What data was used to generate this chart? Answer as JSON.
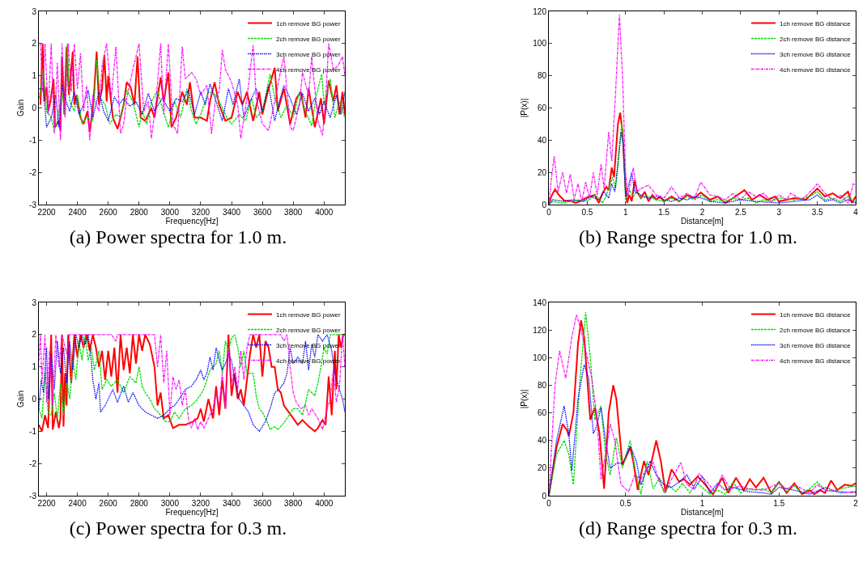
{
  "chart_data": [
    {
      "type": "line",
      "title": "(a) Power spectra for 1.0 m.",
      "xlabel": "Frequency[Hz]",
      "ylabel": "Gain",
      "xlim": [
        2150,
        4135
      ],
      "xticks": [
        2200,
        2400,
        2600,
        2800,
        3000,
        3200,
        3400,
        3600,
        3800,
        4000
      ],
      "ylim": [
        -3,
        3
      ],
      "yticks": [
        -3,
        -2,
        -1,
        0,
        1,
        2,
        3
      ],
      "grid": false,
      "legend": "top right",
      "series": [
        {
          "name": "1ch remove BG power",
          "color": "#ff0000",
          "line_style": "solid",
          "x": [
            2160,
            2175,
            2185,
            2200,
            2210,
            2225,
            2245,
            2255,
            2280,
            2290,
            2300,
            2315,
            2330,
            2345,
            2370,
            2380,
            2395,
            2420,
            2440,
            2465,
            2480,
            2500,
            2510,
            2525,
            2540,
            2560,
            2575,
            2590,
            2600,
            2630,
            2660,
            2680,
            2700,
            2720,
            2745,
            2770,
            2790,
            2810,
            2840,
            2880,
            2900,
            2940,
            2960,
            2990,
            3010,
            3040,
            3080,
            3110,
            3130,
            3160,
            3200,
            3240,
            3260,
            3290,
            3320,
            3360,
            3400,
            3440,
            3470,
            3500,
            3540,
            3580,
            3600,
            3640,
            3680,
            3700,
            3740,
            3780,
            3820,
            3850,
            3880,
            3900,
            3940,
            3980,
            4000,
            4030,
            4060,
            4080,
            4100,
            4120,
            4135
          ],
          "values": [
            0.1,
            2,
            0.2,
            0.65,
            -0.1,
            0.2,
            0.9,
            -0.6,
            -0.4,
            -0.7,
            1.6,
            -0.2,
            1.9,
            0.4,
            1.75,
            0.1,
            0.4,
            -0.3,
            -0.5,
            -0.1,
            -0.75,
            0,
            0.6,
            1.75,
            0.1,
            0.6,
            1.65,
            0.2,
            1,
            -0.3,
            -0.65,
            -0.3,
            0.1,
            0.8,
            0.65,
            0.1,
            1.6,
            -0.3,
            -0.4,
            0,
            -0.3,
            0.95,
            0.2,
            1.1,
            -0.6,
            -0.3,
            0.5,
            0.1,
            0.8,
            -0.3,
            -0.3,
            -0.4,
            0.2,
            0.8,
            0.1,
            -0.4,
            -0.3,
            0.5,
            0.1,
            0.5,
            -0.4,
            0.5,
            -0.2,
            0.6,
            1.25,
            -0.1,
            0.6,
            -0.5,
            0.3,
            0.5,
            -0.3,
            0.6,
            -0.6,
            0.3,
            -0.5,
            0.85,
            0.2,
            0.7,
            -0.2,
            0.5,
            -0.2
          ]
        },
        {
          "name": "2ch remove BG power",
          "color": "#00dd00",
          "line_style": "dashed",
          "x": [
            2152,
            2180,
            2200,
            2230,
            2250,
            2270,
            2300,
            2320,
            2335,
            2350,
            2380,
            2400,
            2430,
            2460,
            2500,
            2525,
            2550,
            2580,
            2610,
            2650,
            2680,
            2720,
            2760,
            2800,
            2820,
            2850,
            2880,
            2920,
            2950,
            2990,
            3030,
            3070,
            3110,
            3140,
            3170,
            3200,
            3250,
            3300,
            3330,
            3370,
            3400,
            3450,
            3490,
            3530,
            3560,
            3600,
            3650,
            3680,
            3720,
            3760,
            3800,
            3840,
            3880,
            3920,
            3950,
            3985,
            4000,
            4040,
            4070,
            4100,
            4135
          ],
          "values": [
            0.3,
            1.2,
            -0.1,
            -0.3,
            -0.7,
            -0.4,
            0.5,
            -0.2,
            2,
            0.2,
            -0.1,
            0.4,
            -0.5,
            -0.3,
            -0.4,
            1.5,
            0.3,
            0.1,
            -0.5,
            -0.2,
            -0.3,
            0.55,
            0.2,
            -0.6,
            -0.1,
            -0.5,
            0.2,
            0.55,
            0,
            -0.6,
            0.2,
            -0.3,
            0.6,
            -0.1,
            -0.5,
            -0.2,
            0.5,
            0.4,
            0.1,
            -0.3,
            -0.5,
            -0.2,
            -0.4,
            0.3,
            -0.3,
            -0.1,
            1.05,
            0.3,
            -0.3,
            0.1,
            -0.3,
            0.5,
            -0.1,
            -0.55,
            0.4,
            1.05,
            0.1,
            0.9,
            -0.3,
            0.2,
            -0.3
          ]
        },
        {
          "name": "3ch remove BG power",
          "color": "#0000ff",
          "line_style": "dotted",
          "x": [
            2153,
            2180,
            2200,
            2230,
            2260,
            2280,
            2300,
            2320,
            2350,
            2380,
            2410,
            2440,
            2470,
            2500,
            2540,
            2570,
            2600,
            2640,
            2670,
            2700,
            2740,
            2780,
            2820,
            2860,
            2900,
            2950,
            3000,
            3040,
            3080,
            3120,
            3160,
            3200,
            3230,
            3260,
            3300,
            3340,
            3380,
            3410,
            3450,
            3480,
            3520,
            3560,
            3600,
            3640,
            3680,
            3710,
            3740,
            3780,
            3820,
            3860,
            3900,
            3940,
            3970,
            4000,
            4040,
            4080,
            4110,
            4135
          ],
          "values": [
            0.6,
            0.6,
            -0.6,
            -0.3,
            0.4,
            -0.6,
            0.7,
            0.3,
            -0.1,
            0.5,
            -0.2,
            0.1,
            0.55,
            -0.3,
            0.5,
            -0.1,
            -0.4,
            0.35,
            0.1,
            0.3,
            0.05,
            0.2,
            -0.2,
            0.45,
            -0.1,
            0.3,
            -0.1,
            0.3,
            0.2,
            0.55,
            -0.2,
            0.5,
            0.1,
            0.75,
            0.2,
            -0.4,
            0.6,
            0.1,
            0.9,
            -0.3,
            0.2,
            0.6,
            -0.1,
            0.7,
            -0.4,
            0.2,
            0.7,
            0.3,
            -0.2,
            0.45,
            -0.1,
            0.3,
            -0.2,
            0.2,
            -0.3,
            0.4,
            -0.2,
            0.5
          ]
        },
        {
          "name": "4ch remove BG power",
          "color": "#ff00ff",
          "line_style": "dashdot",
          "x": [
            2160,
            2175,
            2190,
            2210,
            2230,
            2250,
            2270,
            2290,
            2300,
            2320,
            2340,
            2360,
            2380,
            2400,
            2420,
            2440,
            2460,
            2480,
            2500,
            2540,
            2560,
            2590,
            2620,
            2650,
            2680,
            2700,
            2720,
            2760,
            2800,
            2830,
            2860,
            2880,
            2910,
            2940,
            2960,
            2990,
            3020,
            3050,
            3080,
            3100,
            3140,
            3170,
            3200,
            3240,
            3270,
            3300,
            3320,
            3340,
            3360,
            3400,
            3440,
            3460,
            3500,
            3540,
            3560,
            3600,
            3640,
            3680,
            3720,
            3740,
            3780,
            3800,
            3840,
            3860,
            3900,
            3920,
            3960,
            3990,
            4010,
            4030,
            4060,
            4090,
            4120,
            4135
          ],
          "values": [
            2,
            0.5,
            2,
            -0.2,
            2,
            -0.8,
            1.4,
            -1,
            2,
            -0.3,
            2,
            0.5,
            2,
            0.6,
            1.7,
            -0.1,
            0.7,
            -1,
            0.4,
            -0.1,
            1.3,
            2,
            0.3,
            1.9,
            -0.8,
            -0.5,
            0.3,
            1.2,
            2,
            -0.1,
            0.2,
            -0.95,
            0.2,
            2,
            -0.2,
            2,
            -0.5,
            -0.8,
            1.9,
            0.9,
            1.1,
            0.9,
            0.4,
            0.7,
            -0.8,
            0.4,
            0.5,
            1.8,
            1.2,
            0.8,
            0.1,
            -0.95,
            0.3,
            1.95,
            0.3,
            -0.5,
            -0.7,
            0.2,
            1.2,
            1.6,
            -0.6,
            -0.7,
            0.1,
            1.1,
            0.4,
            1.6,
            -0.4,
            -0.85,
            0.2,
            2,
            1.2,
            1.3,
            1.6,
            1.0
          ]
        }
      ]
    },
    {
      "type": "line",
      "title": "(b) Range spectra for 1.0 m.",
      "xlabel": "Distance[m]",
      "ylabel": "|P(x)|",
      "xlim": [
        0,
        4
      ],
      "xticks": [
        0,
        0.5,
        1,
        1.5,
        2,
        2.5,
        3,
        3.5,
        4
      ],
      "ylim": [
        0,
        120
      ],
      "yticks": [
        0,
        20,
        40,
        60,
        80,
        100,
        120
      ],
      "grid": false,
      "legend": "top right",
      "series": [
        {
          "name": "1ch remove BG distance",
          "color": "#ff0000",
          "line_style": "solid",
          "x": [
            0,
            0.03,
            0.08,
            0.13,
            0.2,
            0.3,
            0.35,
            0.4,
            0.5,
            0.6,
            0.65,
            0.7,
            0.75,
            0.78,
            0.82,
            0.85,
            0.9,
            0.93,
            0.96,
            1.0,
            1.02,
            1.05,
            1.08,
            1.12,
            1.15,
            1.2,
            1.25,
            1.3,
            1.35,
            1.4,
            1.45,
            1.5,
            1.6,
            1.7,
            1.8,
            1.9,
            1.98,
            2.1,
            2.2,
            2.3,
            2.4,
            2.55,
            2.65,
            2.75,
            2.85,
            2.95,
            3.0,
            3.2,
            3.35,
            3.5,
            3.6,
            3.7,
            3.8,
            3.9,
            3.95,
            4.0
          ],
          "values": [
            0,
            5,
            9.5,
            6,
            2.5,
            2,
            1,
            2,
            4.5,
            6,
            1,
            7,
            11,
            9,
            23,
            17,
            50,
            57,
            45,
            10,
            1,
            6,
            2,
            15,
            8,
            4,
            8,
            2,
            6,
            3,
            5,
            2,
            5,
            2,
            6,
            4,
            7.5,
            3,
            5,
            1,
            4,
            9,
            3,
            6,
            3,
            5,
            2,
            4,
            3,
            10,
            5,
            7,
            4,
            8,
            1,
            5
          ]
        },
        {
          "name": "2ch remove BG distance",
          "color": "#00dd00",
          "line_style": "dashed",
          "x": [
            0,
            0.05,
            0.15,
            0.3,
            0.4,
            0.5,
            0.6,
            0.65,
            0.7,
            0.75,
            0.83,
            0.87,
            0.91,
            0.95,
            0.98,
            1.0,
            1.05,
            1.1,
            1.15,
            1.2,
            1.3,
            1.4,
            1.5,
            1.6,
            1.7,
            1.8,
            1.9,
            2.0,
            2.1,
            2.2,
            2.3,
            2.4,
            2.5,
            2.6,
            2.7,
            2.8,
            2.9,
            3.0,
            3.2,
            3.4,
            3.5,
            3.6,
            3.7,
            3.8,
            3.9,
            4.0
          ],
          "values": [
            0,
            2,
            1,
            2,
            3,
            2,
            6,
            4,
            1,
            6,
            17,
            10,
            30,
            50,
            30,
            3,
            9,
            5,
            8,
            4,
            5,
            3,
            2,
            4,
            2,
            5,
            3,
            6,
            2,
            3,
            2,
            4,
            3,
            4,
            1,
            3,
            2,
            4,
            3,
            5,
            8,
            3,
            4,
            2,
            5,
            2
          ]
        },
        {
          "name": "3ch remove BG distance",
          "color": "#0000ff",
          "line_style": "dotted",
          "x": [
            0,
            0.05,
            0.2,
            0.3,
            0.45,
            0.55,
            0.65,
            0.72,
            0.78,
            0.82,
            0.86,
            0.9,
            0.94,
            0.97,
            1.0,
            1.03,
            1.08,
            1.12,
            1.2,
            1.3,
            1.4,
            1.5,
            1.6,
            1.7,
            1.8,
            1.9,
            2.0,
            2.1,
            2.3,
            2.5,
            2.7,
            3.0,
            3.2,
            3.4,
            3.5,
            3.6,
            3.7,
            3.8,
            3.9,
            4.0
          ],
          "values": [
            0,
            3,
            2,
            3,
            2,
            5,
            3,
            8,
            4,
            13,
            8,
            25,
            45,
            38,
            5,
            10,
            20,
            8,
            6,
            4,
            5,
            3,
            2,
            4,
            3,
            5,
            4,
            2,
            1,
            3,
            2,
            1,
            2,
            3,
            6,
            2,
            3,
            1,
            3,
            1
          ]
        },
        {
          "name": "4ch remove BG distance",
          "color": "#ff00ff",
          "line_style": "dashdot",
          "x": [
            0,
            0.03,
            0.07,
            0.12,
            0.18,
            0.23,
            0.28,
            0.33,
            0.38,
            0.43,
            0.48,
            0.53,
            0.58,
            0.63,
            0.68,
            0.72,
            0.78,
            0.82,
            0.87,
            0.92,
            0.96,
            1.0,
            1.03,
            1.1,
            1.15,
            1.2,
            1.3,
            1.4,
            1.5,
            1.6,
            1.7,
            1.8,
            1.9,
            1.98,
            2.1,
            2.2,
            2.3,
            2.4,
            2.5,
            2.6,
            2.7,
            2.8,
            2.9,
            3.0,
            3.1,
            3.15,
            3.3,
            3.45,
            3.5,
            3.6,
            3.7,
            3.8,
            3.9,
            3.97,
            4.0
          ],
          "values": [
            0,
            15,
            30,
            8,
            20,
            7,
            19,
            3,
            13,
            2,
            14,
            4,
            20,
            6,
            25,
            10,
            45,
            27,
            70,
            118,
            80,
            20,
            5,
            23,
            8,
            10,
            12,
            6,
            4,
            11,
            4,
            7,
            4,
            14,
            6,
            5,
            3,
            7,
            3,
            8,
            5,
            7,
            2,
            6,
            3,
            7,
            3,
            10,
            13,
            7,
            3,
            6,
            1,
            13,
            12
          ]
        }
      ]
    },
    {
      "type": "line",
      "title": "(c) Power spectra for 0.3 m.",
      "xlabel": "Frequency[Hz]",
      "ylabel": "Gain",
      "xlim": [
        2150,
        4135
      ],
      "xticks": [
        2200,
        2400,
        2600,
        2800,
        3000,
        3200,
        3400,
        3600,
        3800,
        4000
      ],
      "ylim": [
        -3,
        3
      ],
      "yticks": [
        -3,
        -2,
        -1,
        0,
        1,
        2,
        3
      ],
      "grid": false,
      "legend": "top right",
      "series": [
        {
          "name": "1ch remove BG power",
          "color": "#ff0000",
          "line_style": "solid",
          "x": [
            2150,
            2170,
            2190,
            2210,
            2230,
            2240,
            2260,
            2280,
            2290,
            2300,
            2310,
            2320,
            2330,
            2340,
            2360,
            2380,
            2400,
            2420,
            2440,
            2460,
            2480,
            2500,
            2520,
            2540,
            2560,
            2580,
            2600,
            2620,
            2640,
            2660,
            2680,
            2700,
            2720,
            2740,
            2760,
            2780,
            2800,
            2820,
            2840,
            2870,
            2900,
            2920,
            2940,
            2960,
            2990,
            3020,
            3060,
            3100,
            3150,
            3180,
            3200,
            3220,
            3250,
            3280,
            3300,
            3320,
            3340,
            3360,
            3380,
            3400,
            3420,
            3440,
            3460,
            3480,
            3500,
            3520,
            3540,
            3560,
            3580,
            3600,
            3620,
            3640,
            3660,
            3680,
            3700,
            3720,
            3740,
            3770,
            3800,
            3830,
            3860,
            3900,
            3940,
            3960,
            3990,
            4010,
            4030,
            4050,
            4070,
            4080,
            4095,
            4110,
            4125,
            4135
          ],
          "values": [
            -0.8,
            -1,
            -0.5,
            -0.9,
            2,
            -0.95,
            -0.4,
            -0.9,
            -0.6,
            2,
            -0.85,
            0.8,
            -0.2,
            2,
            0.5,
            2,
            1.3,
            2,
            1.6,
            2,
            1.5,
            2,
            1.6,
            1,
            1.5,
            0.6,
            1.5,
            0.7,
            1.6,
            0.2,
            2,
            0.9,
            1.6,
            0.8,
            2,
            1.1,
            2,
            1.5,
            2,
            1.7,
            1.0,
            -0.2,
            0.2,
            -0.6,
            -0.5,
            -0.9,
            -0.8,
            -0.8,
            -0.7,
            -0.6,
            -0.3,
            -0.7,
            0,
            -0.6,
            0.4,
            -0.5,
            0.6,
            -0.3,
            2,
            0.1,
            0.8,
            0,
            0.3,
            -0.2,
            0.6,
            1.4,
            2,
            1.6,
            2,
            0.7,
            1.8,
            1.6,
            1.0,
            1.0,
            0.3,
            0.2,
            -0.2,
            -0.4,
            -0.6,
            -0.8,
            -0.65,
            -0.85,
            -1,
            -0.9,
            -0.65,
            -0.8,
            0.7,
            -0.5,
            1.5,
            0.3,
            2,
            1.6,
            2,
            2
          ]
        },
        {
          "name": "2ch remove BG power",
          "color": "#00dd00",
          "line_style": "dashed",
          "x": [
            2150,
            2170,
            2190,
            2210,
            2230,
            2250,
            2270,
            2290,
            2310,
            2330,
            2350,
            2370,
            2390,
            2410,
            2430,
            2450,
            2470,
            2490,
            2510,
            2540,
            2560,
            2590,
            2620,
            2660,
            2700,
            2740,
            2780,
            2800,
            2820,
            2840,
            2870,
            2900,
            2940,
            2970,
            3000,
            3030,
            3060,
            3100,
            3140,
            3180,
            3220,
            3240,
            3260,
            3300,
            3320,
            3340,
            3360,
            3380,
            3400,
            3420,
            3440,
            3460,
            3480,
            3500,
            3540,
            3560,
            3580,
            3600,
            3630,
            3650,
            3680,
            3700,
            3730,
            3760,
            3800,
            3830,
            3860,
            3900,
            3940,
            3960,
            3980,
            4000,
            4020,
            4040,
            4080,
            4135
          ],
          "values": [
            -0.3,
            -0.6,
            0.8,
            -0.4,
            -0.5,
            0.2,
            -0.6,
            0.5,
            -0.5,
            0.6,
            0,
            1.2,
            0.6,
            1.8,
            1.2,
            2,
            1.2,
            1.6,
            0.9,
            1.5,
            0.3,
            0.6,
            0.4,
            0.6,
            0.2,
            0.7,
            0.5,
            1.0,
            0.4,
            0.2,
            0,
            -0.3,
            -0.5,
            -0.7,
            -0.7,
            -0.4,
            -0.6,
            -0.3,
            -0.2,
            0,
            0.3,
            0.6,
            0.9,
            1.1,
            1.5,
            0.8,
            1.8,
            1.5,
            1.9,
            2,
            1.6,
            1.0,
            1.5,
            0.8,
            0.8,
            0.1,
            -0.3,
            -0.4,
            -0.7,
            -0.95,
            -0.85,
            -0.95,
            -0.8,
            -0.6,
            -0.3,
            -0.3,
            -0.5,
            0.3,
            0.1,
            0.5,
            1.0,
            1.6,
            1.4,
            2,
            2,
            2
          ]
        },
        {
          "name": "3ch remove BG power",
          "color": "#0000ff",
          "line_style": "dotted",
          "x": [
            2150,
            2165,
            2180,
            2200,
            2210,
            2230,
            2250,
            2270,
            2290,
            2310,
            2330,
            2350,
            2370,
            2390,
            2410,
            2430,
            2450,
            2470,
            2490,
            2500,
            2520,
            2540,
            2550,
            2580,
            2600,
            2630,
            2660,
            2700,
            2730,
            2760,
            2800,
            2840,
            2880,
            2920,
            2960,
            3000,
            3030,
            3060,
            3100,
            3140,
            3170,
            3200,
            3220,
            3240,
            3260,
            3280,
            3300,
            3320,
            3340,
            3360,
            3380,
            3400,
            3420,
            3450,
            3480,
            3510,
            3540,
            3580,
            3620,
            3650,
            3680,
            3710,
            3740,
            3760,
            3780,
            3800,
            3830,
            3860,
            3880,
            3900,
            3920,
            3940,
            3960,
            3990,
            4020,
            4050,
            4070,
            4100,
            4120,
            4135
          ],
          "values": [
            -0.3,
            0.6,
            0.2,
            1.6,
            0,
            1.4,
            0.3,
            1.8,
            0.8,
            1.6,
            0.5,
            1.8,
            0.9,
            2,
            1.6,
            2,
            1.7,
            2,
            1.2,
            0.6,
            0,
            0.5,
            -0.4,
            -0.2,
            0,
            0.3,
            -0.1,
            0.4,
            -0.1,
            0.2,
            -0.2,
            -0.4,
            -0.5,
            -0.6,
            -0.5,
            -0.3,
            -0.2,
            0,
            0.3,
            0.4,
            0.6,
            0.9,
            0.6,
            0.8,
            1.3,
            0.9,
            1.6,
            1.2,
            0.9,
            1.1,
            1.4,
            1.2,
            0.6,
            0,
            -0.2,
            -0.4,
            -0.8,
            -1,
            -0.7,
            -0.3,
            0.2,
            0.3,
            0.5,
            0.8,
            1.6,
            1.1,
            1.3,
            1.1,
            1.8,
            0.9,
            1.7,
            1.3,
            2,
            1.8,
            2,
            1.5,
            0.8,
            0.3,
            0,
            -0.4
          ]
        },
        {
          "name": "4ch remove BG power",
          "color": "#ff00ff",
          "line_style": "dashdot",
          "x": [
            2150,
            2160,
            2170,
            2190,
            2200,
            2220,
            2240,
            2260,
            2280,
            2300,
            2330,
            2350,
            2400,
            2440,
            2500,
            2560,
            2620,
            2650,
            2660,
            2700,
            2800,
            2880,
            2900,
            2920,
            2940,
            2960,
            2980,
            3000,
            3020,
            3040,
            3060,
            3080,
            3100,
            3120,
            3140,
            3160,
            3180,
            3200,
            3220,
            3250,
            3280,
            3300,
            3320,
            3340,
            3360,
            3380,
            3400,
            3420,
            3440,
            3460,
            3480,
            3500,
            3520,
            3560,
            3620,
            3680,
            3720,
            3740,
            3760,
            3780,
            3800,
            3820,
            3850,
            3880,
            3900,
            3920,
            3960,
            3990,
            4020,
            4040,
            4060,
            4080,
            4100,
            4120,
            4135
          ],
          "values": [
            1.2,
            2,
            0.5,
            2,
            -0.1,
            1.5,
            -0.2,
            2,
            1.0,
            2,
            1.4,
            2,
            2,
            2,
            2,
            2,
            2,
            1.8,
            2,
            2,
            2,
            2,
            2,
            1.0,
            2,
            0.5,
            1.5,
            -0.5,
            0.7,
            0.3,
            0.6,
            -0.2,
            0.3,
            -0.6,
            -0.9,
            -0.6,
            -0.95,
            -0.7,
            -0.9,
            -0.6,
            -0.3,
            0.2,
            -0.2,
            0.8,
            -0.3,
            1.6,
            0.5,
            1.0,
            0.3,
            1.5,
            0.6,
            1.6,
            2,
            2,
            2,
            2,
            2,
            1.8,
            2,
            1.0,
            0.2,
            -0.1,
            -0.3,
            -0.2,
            -0.5,
            -0.3,
            -0.6,
            -0.95,
            -0.3,
            0,
            0.9,
            -0.1,
            0.4,
            2,
            1.0
          ]
        }
      ]
    },
    {
      "type": "line",
      "title": "(d) Range spectra for 0.3 m.",
      "xlabel": "Distance[m]",
      "ylabel": "|P(x)|",
      "xlim": [
        0,
        2
      ],
      "xticks": [
        0,
        0.5,
        1,
        1.5,
        2
      ],
      "ylim": [
        0,
        140
      ],
      "yticks": [
        0,
        20,
        40,
        60,
        80,
        100,
        120,
        140
      ],
      "grid": false,
      "legend": "top right",
      "series": [
        {
          "name": "1ch remove BG distance",
          "color": "#ff0000",
          "line_style": "solid",
          "x": [
            0,
            0.05,
            0.09,
            0.12,
            0.13,
            0.16,
            0.19,
            0.21,
            0.23,
            0.27,
            0.3,
            0.33,
            0.36,
            0.39,
            0.42,
            0.44,
            0.48,
            0.53,
            0.55,
            0.58,
            0.6,
            0.62,
            0.65,
            0.7,
            0.73,
            0.76,
            0.8,
            0.85,
            0.88,
            0.92,
            0.97,
            1.02,
            1.07,
            1.13,
            1.17,
            1.22,
            1.27,
            1.31,
            1.35,
            1.4,
            1.45,
            1.5,
            1.55,
            1.6,
            1.65,
            1.7,
            1.73,
            1.77,
            1.8,
            1.84,
            1.88,
            1.93,
            1.97,
            2.0
          ],
          "values": [
            0,
            35,
            52,
            47,
            43,
            60,
            110,
            127,
            115,
            55,
            64,
            45,
            5,
            60,
            80,
            70,
            22,
            35,
            25,
            4,
            15,
            25,
            15,
            40,
            25,
            3,
            19,
            10,
            12,
            8,
            14,
            8,
            1,
            13,
            2,
            13,
            4,
            12,
            6,
            13,
            2,
            10,
            2,
            9,
            1,
            4,
            1,
            4,
            2,
            11,
            4,
            8,
            7,
            9
          ]
        },
        {
          "name": "2ch remove BG distance",
          "color": "#00dd00",
          "line_style": "dashed",
          "x": [
            0,
            0.05,
            0.1,
            0.13,
            0.16,
            0.2,
            0.24,
            0.27,
            0.3,
            0.34,
            0.37,
            0.4,
            0.44,
            0.48,
            0.53,
            0.57,
            0.6,
            0.64,
            0.68,
            0.72,
            0.75,
            0.78,
            0.83,
            0.87,
            0.92,
            0.96,
            1.0,
            1.05,
            1.1,
            1.15,
            1.2,
            1.25,
            1.3,
            1.35,
            1.4,
            1.45,
            1.5,
            1.55,
            1.6,
            1.65,
            1.7,
            1.75,
            1.8,
            1.85,
            1.9,
            2.0
          ],
          "values": [
            0,
            30,
            40,
            30,
            8,
            80,
            133,
            100,
            55,
            65,
            30,
            15,
            42,
            20,
            40,
            15,
            1,
            25,
            5,
            13,
            2,
            7,
            3,
            9,
            2,
            10,
            6,
            1,
            4,
            1,
            10,
            2,
            5,
            4,
            5,
            2,
            10,
            3,
            7,
            2,
            5,
            10,
            4,
            3,
            5,
            7
          ]
        },
        {
          "name": "3ch remove BG distance",
          "color": "#0000ff",
          "line_style": "dotted",
          "x": [
            0,
            0.05,
            0.1,
            0.13,
            0.15,
            0.19,
            0.23,
            0.26,
            0.29,
            0.31,
            0.34,
            0.37,
            0.4,
            0.45,
            0.48,
            0.53,
            0.57,
            0.6,
            0.66,
            0.7,
            0.75,
            0.8,
            0.85,
            0.9,
            0.95,
            1.0,
            1.05,
            1.1,
            1.15,
            1.2,
            1.3,
            1.4,
            1.45,
            1.5,
            1.6,
            1.7,
            1.8,
            1.9,
            2.0
          ],
          "values": [
            0,
            40,
            65,
            45,
            18,
            70,
            95,
            85,
            45,
            50,
            64,
            40,
            20,
            24,
            23,
            36,
            25,
            8,
            25,
            15,
            8,
            6,
            10,
            15,
            5,
            14,
            2,
            9,
            4,
            6,
            3,
            2,
            1,
            6,
            4,
            1,
            6,
            2,
            3
          ]
        },
        {
          "name": "4ch remove BG distance",
          "color": "#ff00ff",
          "line_style": "dashdot",
          "x": [
            0,
            0.04,
            0.07,
            0.11,
            0.15,
            0.18,
            0.21,
            0.25,
            0.28,
            0.31,
            0.34,
            0.37,
            0.4,
            0.43,
            0.47,
            0.52,
            0.56,
            0.6,
            0.64,
            0.68,
            0.72,
            0.76,
            0.8,
            0.86,
            0.9,
            0.94,
            0.98,
            1.03,
            1.08,
            1.13,
            1.18,
            1.25,
            1.3,
            1.4,
            1.5,
            1.55,
            1.6,
            1.7,
            1.75,
            1.8,
            1.9,
            2.0
          ],
          "values": [
            0,
            80,
            105,
            85,
            115,
            131,
            120,
            100,
            85,
            60,
            12,
            30,
            52,
            40,
            8,
            3,
            15,
            12,
            20,
            24,
            10,
            2,
            12,
            24,
            8,
            5,
            16,
            10,
            3,
            15,
            5,
            7,
            5,
            4,
            9,
            5,
            8,
            2,
            8,
            4,
            3,
            2
          ]
        }
      ]
    }
  ]
}
